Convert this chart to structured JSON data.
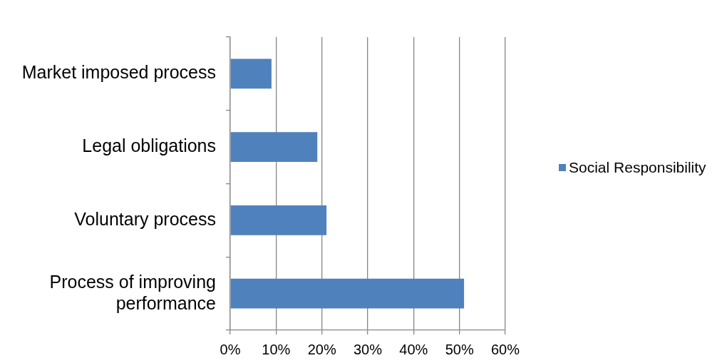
{
  "chart_data": {
    "type": "bar",
    "orientation": "horizontal",
    "categories": [
      "Market imposed process",
      "Legal obligations",
      "Voluntary process",
      "Process of improving performance"
    ],
    "series": [
      {
        "name": "Social Responsibility",
        "color": "#4f81bd",
        "values": [
          9,
          19,
          21,
          51
        ]
      }
    ],
    "xlim": [
      0,
      60
    ],
    "xticks": [
      {
        "value": 0,
        "label": "0%"
      },
      {
        "value": 10,
        "label": "10%"
      },
      {
        "value": 20,
        "label": "20%"
      },
      {
        "value": 30,
        "label": "30%"
      },
      {
        "value": 40,
        "label": "40%"
      },
      {
        "value": 50,
        "label": "50%"
      },
      {
        "value": 60,
        "label": "60%"
      }
    ],
    "grid": "x",
    "legend": "right"
  }
}
